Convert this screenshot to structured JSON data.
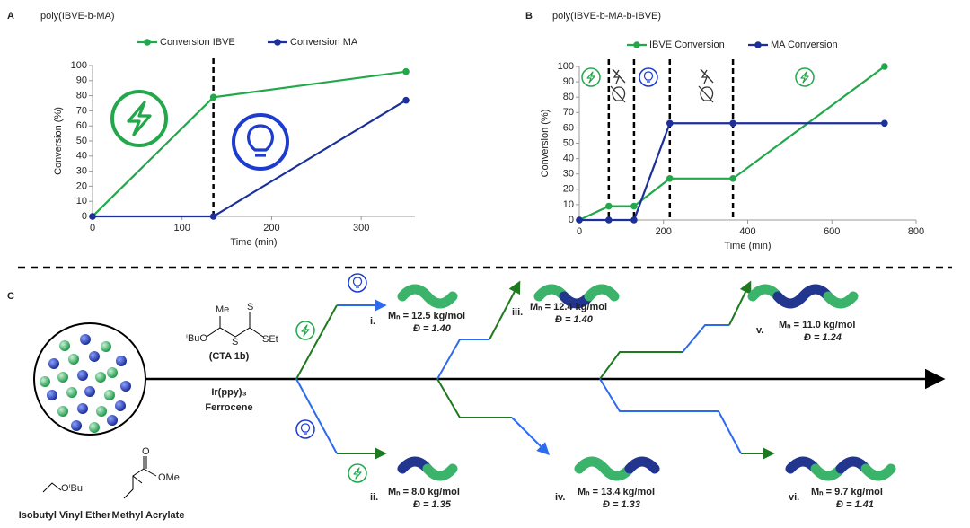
{
  "chart_data": [
    {
      "type": "line",
      "label": "A",
      "title": "poly(IBVE-b-MA)",
      "xlabel": "Time (min)",
      "ylabel": "Conversion (%)",
      "x": [
        0,
        135,
        350
      ],
      "xlim": [
        0,
        360
      ],
      "xticks": [
        0,
        100,
        200,
        300
      ],
      "ylim": [
        0,
        100
      ],
      "yticks": [
        0,
        10,
        20,
        30,
        40,
        50,
        60,
        70,
        80,
        90,
        100
      ],
      "phase_boundaries": [
        135
      ],
      "series": [
        {
          "name": "Conversion IBVE",
          "color": "#22a84a",
          "values": [
            0,
            79,
            96
          ]
        },
        {
          "name": "Conversion MA",
          "color": "#1c2f9a",
          "values": [
            0,
            0,
            77
          ]
        }
      ]
    },
    {
      "type": "line",
      "label": "B",
      "title": "poly(IBVE-b-MA-b-IBVE)",
      "xlabel": "Time (min)",
      "ylabel": "Conversion (%)",
      "x": [
        0,
        70,
        130,
        215,
        365,
        725
      ],
      "xlim": [
        0,
        800
      ],
      "xticks": [
        0,
        200,
        400,
        600,
        800
      ],
      "ylim": [
        0,
        100
      ],
      "yticks": [
        0,
        10,
        20,
        30,
        40,
        50,
        60,
        70,
        80,
        90,
        100
      ],
      "phase_boundaries": [
        70,
        130,
        215,
        365
      ],
      "series": [
        {
          "name": "IBVE Conversion",
          "color": "#22a84a",
          "values": [
            0,
            9,
            9,
            27,
            27,
            100
          ]
        },
        {
          "name": "MA Conversion",
          "color": "#1c2f9a",
          "values": [
            0,
            0,
            0,
            63,
            63,
            63
          ]
        }
      ]
    }
  ],
  "scheme": {
    "label": "C",
    "reagents": [
      "(CTA 1b)",
      "Ir(ppy)₃",
      "Ferrocene"
    ],
    "structure_labels": [
      "Me",
      "S",
      "S",
      "ⁱBuO",
      "SEt",
      "OⁱBu",
      "O",
      "OMe"
    ],
    "monomers": [
      "Isobutyl Vinyl Ether",
      "Methyl Acrylate"
    ],
    "products": [
      {
        "id": "i.",
        "mn": "Mₙ = 12.5 kg/mol",
        "dispersity": "Đ = 1.40"
      },
      {
        "id": "ii.",
        "mn": "Mₙ = 8.0 kg/mol",
        "dispersity": "Đ = 1.35"
      },
      {
        "id": "iii.",
        "mn": "Mₙ = 12.4 kg/mol",
        "dispersity": "Đ = 1.40"
      },
      {
        "id": "iv.",
        "mn": "Mₙ = 13.4 kg/mol",
        "dispersity": "Đ = 1.33"
      },
      {
        "id": "v.",
        "mn": "Mₙ = 11.0 kg/mol",
        "dispersity": "Đ = 1.24"
      },
      {
        "id": "vi.",
        "mn": "Mₙ = 9.7 kg/mol",
        "dispersity": "Đ = 1.41"
      }
    ]
  }
}
